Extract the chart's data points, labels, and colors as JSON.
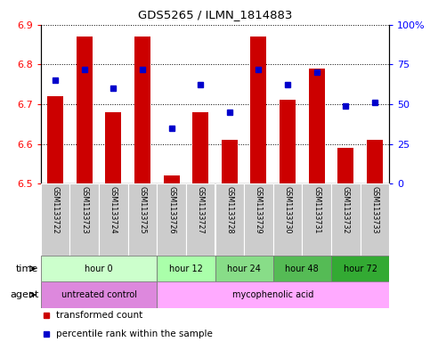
{
  "title": "GDS5265 / ILMN_1814883",
  "samples": [
    "GSM1133722",
    "GSM1133723",
    "GSM1133724",
    "GSM1133725",
    "GSM1133726",
    "GSM1133727",
    "GSM1133728",
    "GSM1133729",
    "GSM1133730",
    "GSM1133731",
    "GSM1133732",
    "GSM1133733"
  ],
  "bar_heights": [
    6.72,
    6.87,
    6.68,
    6.87,
    6.52,
    6.68,
    6.61,
    6.87,
    6.71,
    6.79,
    6.59,
    6.61
  ],
  "bar_base": 6.5,
  "percentile_ranks": [
    65,
    72,
    60,
    72,
    35,
    62,
    45,
    72,
    62,
    70,
    49,
    51
  ],
  "ylim_left": [
    6.5,
    6.9
  ],
  "ylim_right": [
    0,
    100
  ],
  "yticks_left": [
    6.5,
    6.6,
    6.7,
    6.8,
    6.9
  ],
  "yticks_right": [
    0,
    25,
    50,
    75,
    100
  ],
  "ytick_labels_right": [
    "0",
    "25",
    "50",
    "75",
    "100%"
  ],
  "bar_color": "#cc0000",
  "dot_color": "#0000cc",
  "grid_color": "#000000",
  "background_color": "#ffffff",
  "time_groups": [
    {
      "label": "hour 0",
      "start": 0,
      "end": 4,
      "color": "#ccffcc"
    },
    {
      "label": "hour 12",
      "start": 4,
      "end": 6,
      "color": "#aaffaa"
    },
    {
      "label": "hour 24",
      "start": 6,
      "end": 8,
      "color": "#88dd88"
    },
    {
      "label": "hour 48",
      "start": 8,
      "end": 10,
      "color": "#55bb55"
    },
    {
      "label": "hour 72",
      "start": 10,
      "end": 12,
      "color": "#33aa33"
    }
  ],
  "agent_groups": [
    {
      "label": "untreated control",
      "start": 0,
      "end": 4,
      "color": "#dd88dd"
    },
    {
      "label": "mycophenolic acid",
      "start": 4,
      "end": 12,
      "color": "#ffaaff"
    }
  ],
  "legend_items": [
    {
      "label": "transformed count",
      "color": "#cc0000",
      "marker": "s"
    },
    {
      "label": "percentile rank within the sample",
      "color": "#0000cc",
      "marker": "s"
    }
  ],
  "xticklabel_bg": "#cccccc",
  "time_row_label": "time",
  "agent_row_label": "agent"
}
